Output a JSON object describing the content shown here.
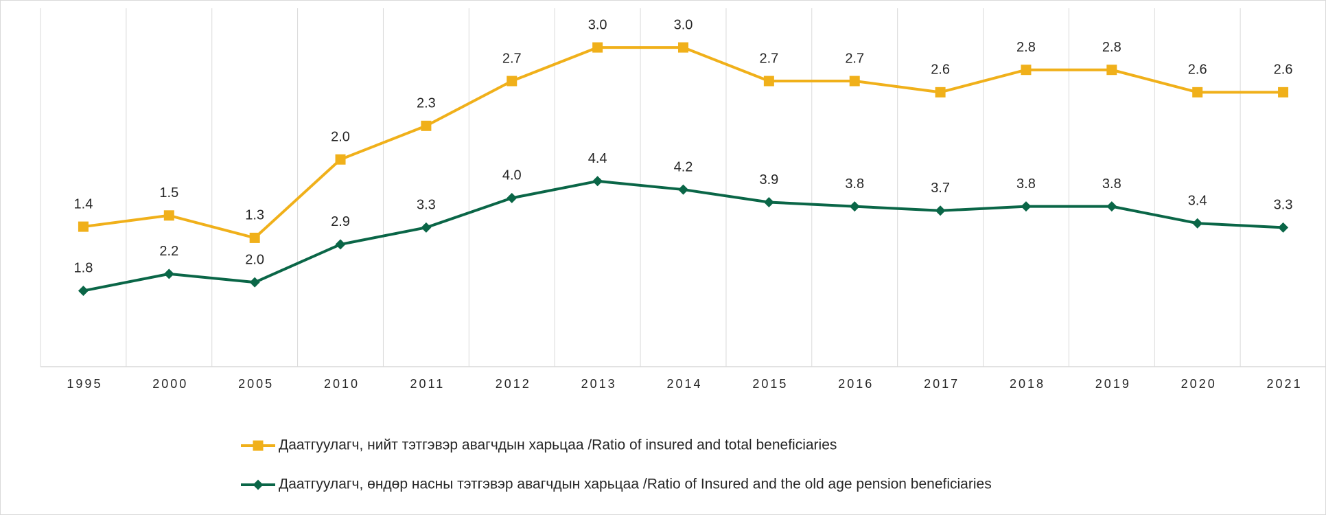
{
  "chart_data": {
    "type": "line",
    "categories": [
      "1995",
      "2000",
      "2005",
      "2010",
      "2011",
      "2012",
      "2013",
      "2014",
      "2015",
      "2016",
      "2017",
      "2018",
      "2019",
      "2020",
      "2021"
    ],
    "series": [
      {
        "name": "Даатгуулагч, нийт тэтгэвэр авагчдын харьцаа /Ratio of insured and total beneficiaries",
        "color": "#f0b01a",
        "marker": "square",
        "values": [
          1.4,
          1.5,
          1.3,
          2.0,
          2.3,
          2.7,
          3.0,
          3.0,
          2.7,
          2.7,
          2.6,
          2.8,
          2.8,
          2.6,
          2.6
        ],
        "value_labels": [
          "1.4",
          "1.5",
          "1.3",
          "2.0",
          "2.3",
          "2.7",
          "3.0",
          "3.0",
          "2.7",
          "2.7",
          "2.6",
          "2.8",
          "2.8",
          "2.6",
          "2.6"
        ]
      },
      {
        "name": "Даатгуулагч, өндөр насны тэтгэвэр авагчдын харьцаа /Ratio of Insured and the old age pension beneficiaries",
        "color": "#0a6647",
        "marker": "diamond",
        "axis": "y2",
        "values": [
          1.8,
          2.2,
          2.0,
          2.9,
          3.3,
          4.0,
          4.4,
          4.2,
          3.9,
          3.8,
          3.7,
          3.8,
          3.8,
          3.4,
          3.3
        ],
        "value_labels": [
          "1.8",
          "2.2",
          "2.0",
          "2.9",
          "3.3",
          "4.0",
          "4.4",
          "4.2",
          "3.9",
          "3.8",
          "3.7",
          "3.8",
          "3.8",
          "3.4",
          "3.3"
        ]
      }
    ],
    "ylim": [
      0.15,
      3.35
    ],
    "y2lim": [
      0,
      8.5
    ],
    "grid": true,
    "legend": "bottom"
  }
}
